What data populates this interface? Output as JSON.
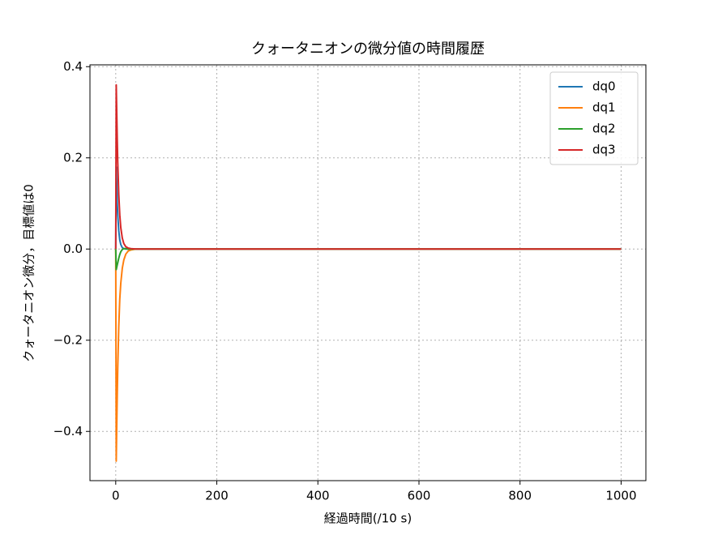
{
  "chart_data": {
    "type": "line",
    "title": "クォータニオンの微分値の時間履歴",
    "x_label": "経過時間(/10 s)",
    "y_label": "クォータニオン微分，目標値は0",
    "x": [
      0,
      1,
      2,
      3,
      4,
      6,
      8,
      10,
      13,
      16,
      20,
      25,
      30,
      40,
      60,
      100,
      200,
      400,
      600,
      800,
      1000
    ],
    "series": [
      {
        "name": "dq0",
        "color": "#1f77b4",
        "values": [
          0,
          0.18,
          0.14,
          0.1,
          0.075,
          0.04,
          0.02,
          0.01,
          0.003,
          0.001,
          0,
          0,
          0,
          0,
          0,
          0,
          0,
          0,
          0,
          0,
          0
        ]
      },
      {
        "name": "dq1",
        "color": "#ff7f0e",
        "values": [
          0,
          -0.465,
          -0.39,
          -0.32,
          -0.26,
          -0.17,
          -0.11,
          -0.075,
          -0.042,
          -0.024,
          -0.011,
          -0.004,
          -0.002,
          0,
          0,
          0,
          0,
          0,
          0,
          0,
          0
        ]
      },
      {
        "name": "dq2",
        "color": "#2ca02c",
        "values": [
          0,
          -0.045,
          -0.04,
          -0.035,
          -0.03,
          -0.02,
          -0.012,
          -0.006,
          -0.001,
          0.001,
          0.001,
          0,
          0,
          0,
          0,
          0,
          0,
          0,
          0,
          0,
          0
        ]
      },
      {
        "name": "dq3",
        "color": "#d62728",
        "values": [
          0,
          0.36,
          0.3,
          0.24,
          0.19,
          0.12,
          0.075,
          0.047,
          0.024,
          0.012,
          0.005,
          0.002,
          0.001,
          0,
          0,
          0,
          0,
          0,
          0,
          0,
          0
        ]
      }
    ],
    "xlim": [
      -51,
      1049
    ],
    "ylim": [
      -0.508,
      0.404
    ],
    "xticks": [
      0,
      200,
      400,
      600,
      800,
      1000
    ],
    "yticks": [
      {
        "value": -0.4,
        "label": "−0.4"
      },
      {
        "value": -0.2,
        "label": "−0.2"
      },
      {
        "value": 0,
        "label": "0.0"
      },
      0.2,
      0.4
    ],
    "grid": true,
    "legend": "upper-right"
  }
}
